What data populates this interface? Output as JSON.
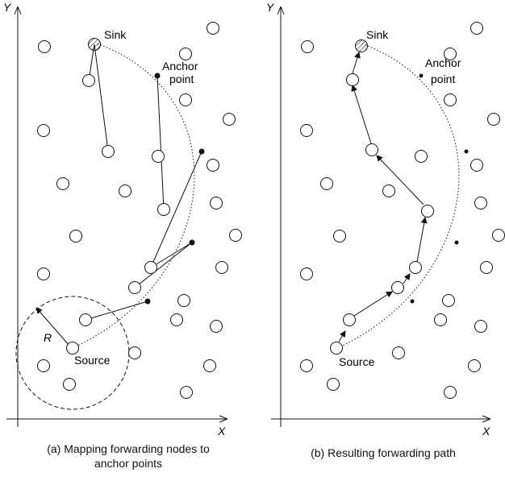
{
  "panel_a": {
    "y_axis_label": "Y",
    "x_axis_label": "X",
    "sink_label": "Sink",
    "anchor_label_line1": "Anchor",
    "anchor_label_line2": "point",
    "source_label": "Source",
    "range_label": "R",
    "caption_line1": "(a) Mapping forwarding nodes to",
    "caption_line2": "anchor points"
  },
  "panel_b": {
    "y_axis_label": "Y",
    "x_axis_label": "X",
    "sink_label": "Sink",
    "anchor_label_line1": "Anchor",
    "anchor_label_line2": "point",
    "source_label": "Source",
    "caption_line1": "(b) Resulting forwarding path"
  }
}
